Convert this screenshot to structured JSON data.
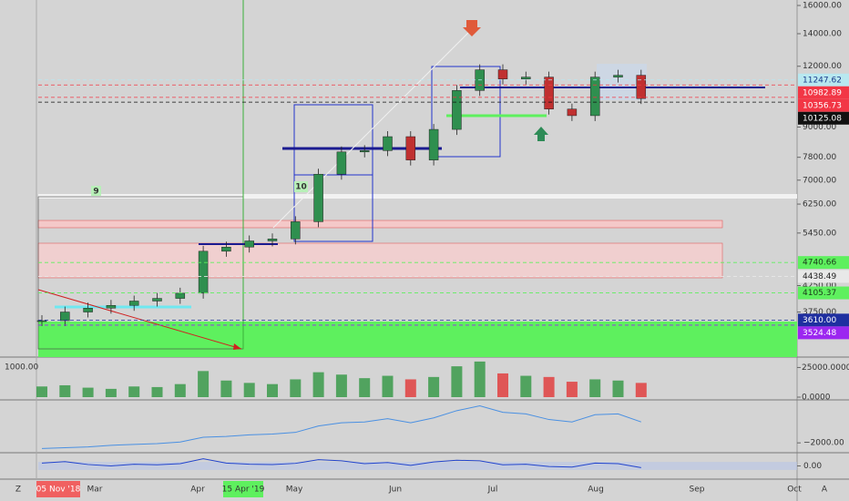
{
  "price_axis": {
    "scale": "log",
    "ylim": [
      3030,
      16420
    ],
    "ticks": [
      {
        "value": 16000,
        "label": "16000.00"
      },
      {
        "value": 14000,
        "label": "14000.00"
      },
      {
        "value": 12000,
        "label": "12000.00"
      },
      {
        "value": 9000,
        "label": "9000.00"
      },
      {
        "value": 7800,
        "label": "7800.00"
      },
      {
        "value": 7000,
        "label": "7000.00"
      },
      {
        "value": 6250,
        "label": "6250.00"
      },
      {
        "value": 5450,
        "label": "5450.00"
      },
      {
        "value": 4250,
        "label": "4250.00"
      },
      {
        "value": 3750,
        "label": "3750.00"
      }
    ]
  },
  "price_tags": [
    {
      "value": 11247.62,
      "label": "11247.62",
      "color": "#b8e8f0",
      "text_color": "#1a3a8a"
    },
    {
      "value": 10982.89,
      "label": "10982.89",
      "color": "#f23645",
      "text_color": "#ffffff"
    },
    {
      "value": 10356.73,
      "label": "10356.73",
      "color": "#f23645",
      "text_color": "#ffffff"
    },
    {
      "value": 10125.08,
      "label": "10125.08",
      "color": "#111111",
      "text_color": "#ffffff"
    },
    {
      "value": 4740.66,
      "label": "4740.66",
      "color": "#5ef05e",
      "text_color": "#1a3a1a"
    },
    {
      "value": 4438.49,
      "label": "4438.49",
      "color": "#e8e8e8",
      "text_color": "#222222"
    },
    {
      "value": 4105.37,
      "label": "4105.37",
      "color": "#5ef05e",
      "text_color": "#1a3a1a"
    },
    {
      "value": 3610.0,
      "label": "3610.00",
      "color": "#1f2fa0",
      "text_color": "#ffffff"
    },
    {
      "value": 3524.48,
      "label": "3524.48",
      "color": "#9c27f0",
      "text_color": "#ffffff"
    }
  ],
  "weekly_closes": [
    3600,
    3750,
    3820,
    3870,
    3950,
    4000,
    4100,
    5000,
    5100,
    5250,
    5300,
    5750,
    7200,
    8000,
    8050,
    8600,
    7700,
    8900,
    10700,
    11800,
    11300,
    11400,
    9800,
    9500,
    11400,
    11500,
    10300
  ],
  "volume": {
    "left_label": "1000.00",
    "ylim": [
      0,
      33000
    ],
    "ticks": [
      {
        "value": 25000,
        "label": "25000.0000"
      },
      {
        "value": 0,
        "label": "0.0000"
      }
    ],
    "values": [
      9000,
      10000,
      8000,
      7000,
      9000,
      8500,
      11000,
      22000,
      14000,
      12000,
      11000,
      15000,
      21000,
      19000,
      16000,
      18000,
      15000,
      17000,
      26000,
      30000,
      20000,
      18000,
      17000,
      13000,
      15000,
      14000,
      12000
    ]
  },
  "oscillator": {
    "ylim": [
      -3000,
      3000
    ],
    "ticks": [
      {
        "value": -2000,
        "label": "−2000.00"
      }
    ],
    "values": [
      -2700,
      -2600,
      -2500,
      -2300,
      -2200,
      -2100,
      -1900,
      -1300,
      -1200,
      -1000,
      -900,
      -700,
      100,
      500,
      600,
      1000,
      500,
      1100,
      2000,
      2600,
      1800,
      1600,
      900,
      600,
      1500,
      1600,
      600
    ]
  },
  "rsi_pane": {
    "ylim": [
      -40,
      40
    ],
    "ticks": [
      {
        "value": 0,
        "label": "0.00"
      }
    ],
    "values": [
      10,
      15,
      5,
      0,
      6,
      4,
      8,
      25,
      10,
      6,
      5,
      9,
      22,
      18,
      8,
      12,
      2,
      14,
      20,
      18,
      4,
      6,
      -2,
      -4,
      10,
      8,
      -6
    ]
  },
  "time_axis": {
    "labels": [
      "Mar",
      "Apr",
      "May",
      "Jun",
      "Jul",
      "Aug",
      "Sep",
      "Oct"
    ],
    "start_tag": "05 Nov '18",
    "cursor_tag": "15 Apr '19"
  },
  "markers": [
    "9",
    "10"
  ],
  "corner_left": "Z",
  "corner_right": "A"
}
